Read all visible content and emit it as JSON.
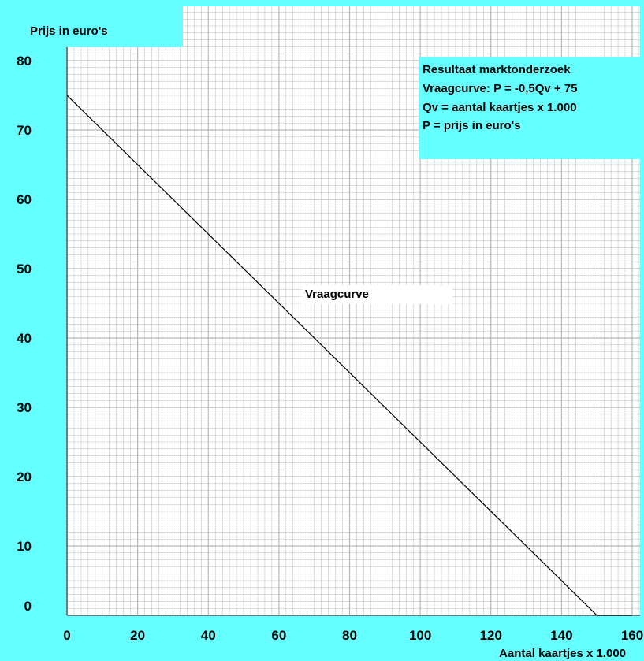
{
  "chart_data": {
    "type": "line",
    "ylabel": "Prijs in euro's",
    "xlabel": "Aantal kaartjes x 1.000",
    "xlim": [
      0,
      160
    ],
    "ylim": [
      0,
      80
    ],
    "xticks": [
      "0",
      "20",
      "40",
      "60",
      "80",
      "100",
      "120",
      "140",
      "160"
    ],
    "yticks": [
      "0",
      "10",
      "20",
      "30",
      "40",
      "50",
      "60",
      "70",
      "80"
    ],
    "grid": true,
    "series": [
      {
        "name": "Vraagcurve",
        "x": [
          0,
          150,
          160
        ],
        "y": [
          75,
          0,
          0
        ]
      }
    ],
    "annotations": {
      "curve_label": "Vraagcurve",
      "info_box": [
        "Resultaat marktonderzoek",
        "Vraagcurve:  P = -0,5Qv + 75",
        "Qv = aantal kaartjes x 1.000",
        "P = prijs in euro's"
      ]
    },
    "colors": {
      "background": "#66ffff",
      "plot": "#ffffff",
      "grid": "#b8b8b8",
      "line": "#000000"
    }
  }
}
